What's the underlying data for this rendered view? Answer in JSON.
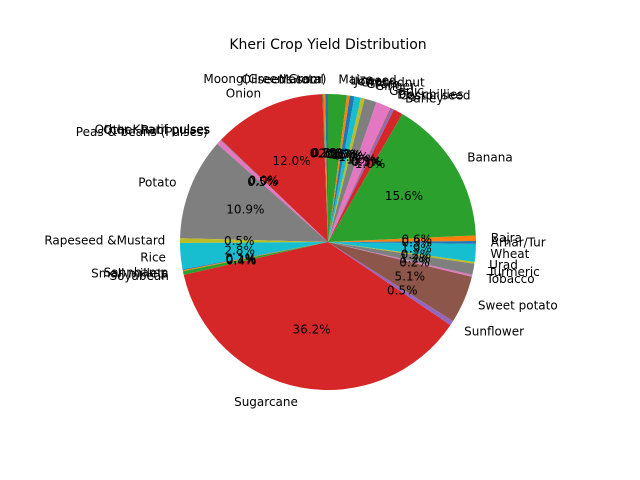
{
  "chart_data": {
    "type": "pie",
    "title": "Kheri Crop Yield Distribution",
    "start_angle_deg": 90,
    "direction": "counterclockwise",
    "palette": [
      "#1f77b4",
      "#ff7f0e",
      "#2ca02c",
      "#d62728",
      "#9467bd",
      "#8c564b",
      "#e377c2",
      "#7f7f7f",
      "#bcbd22",
      "#17becf"
    ],
    "slices": [
      {
        "label": "Moong(Green Gram)",
        "value": 0.3,
        "pct_label": "0.3%"
      },
      {
        "label": "Oilseeds total",
        "value": 0.2,
        "pct_label": "0.2%"
      },
      {
        "label": "Masoor",
        "value": 0.1,
        "pct_label": "0.1%"
      },
      {
        "label": "Onion",
        "value": 12.0,
        "pct_label": "12.0%"
      },
      {
        "label": "Other Kharif pulses",
        "value": 0.05,
        "pct_label": "0.0%"
      },
      {
        "label": "Other Rabi pulses",
        "value": 0.05,
        "pct_label": "0.0%"
      },
      {
        "label": "Peas & beans (Pulses)",
        "value": 0.5,
        "pct_label": "0.5%"
      },
      {
        "label": "Potato",
        "value": 10.9,
        "pct_label": "10.9%"
      },
      {
        "label": "Rapeseed &Mustard",
        "value": 0.5,
        "pct_label": "0.5%"
      },
      {
        "label": "Rice",
        "value": 2.8,
        "pct_label": "2.8%"
      },
      {
        "label": "Sannhamp",
        "value": 0.1,
        "pct_label": "0.1%"
      },
      {
        "label": "Small millets",
        "value": 0.1,
        "pct_label": "0.1%"
      },
      {
        "label": "Soyabean",
        "value": 0.4,
        "pct_label": "0.4%"
      },
      {
        "label": "Sugarcane",
        "value": 36.2,
        "pct_label": "36.2%"
      },
      {
        "label": "Sunflower",
        "value": 0.5,
        "pct_label": "0.5%"
      },
      {
        "label": "Sweet potato",
        "value": 5.1,
        "pct_label": "5.1%"
      },
      {
        "label": "Tobacco",
        "value": 0.2,
        "pct_label": "0.2%"
      },
      {
        "label": "Turmeric",
        "value": 1.2,
        "pct_label": "1.2%"
      },
      {
        "label": "Urad",
        "value": 0.2,
        "pct_label": "0.2%"
      },
      {
        "label": "Wheat",
        "value": 1.9,
        "pct_label": "1.9%"
      },
      {
        "label": "Arhar/Tur",
        "value": 0.3,
        "pct_label": "0.3%"
      },
      {
        "label": "Bajra",
        "value": 0.6,
        "pct_label": "0.6%"
      },
      {
        "label": "Banana",
        "value": 15.6,
        "pct_label": "15.6%"
      },
      {
        "label": "Barley",
        "value": 1.0,
        "pct_label": "1.0%"
      },
      {
        "label": "Castor seed",
        "value": 0.3,
        "pct_label": "0.3%"
      },
      {
        "label": "Dry chillies",
        "value": 0.1,
        "pct_label": "0.1%"
      },
      {
        "label": "Garlic",
        "value": 1.6,
        "pct_label": "1.6%"
      },
      {
        "label": "Ginger",
        "value": 1.3,
        "pct_label": "1.3%"
      },
      {
        "label": "Gram",
        "value": 0.4,
        "pct_label": "0.4%"
      },
      {
        "label": "Groundnut",
        "value": 0.7,
        "pct_label": "0.7%"
      },
      {
        "label": "Jowar",
        "value": 0.5,
        "pct_label": "0.5%"
      },
      {
        "label": "Linseed",
        "value": 0.3,
        "pct_label": "0.3%"
      },
      {
        "label": "Maize",
        "value": 2.0,
        "pct_label": "2.0%"
      }
    ]
  }
}
